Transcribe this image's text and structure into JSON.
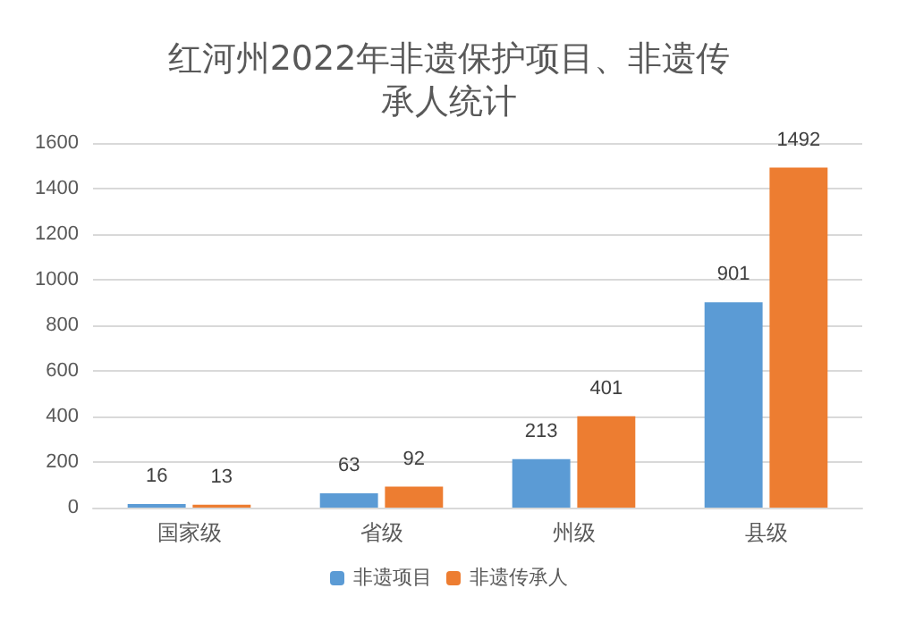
{
  "chart_data": {
    "type": "bar",
    "title": "红河州2022年非遗保护项目、非遗传承人统计",
    "categories": [
      "国家级",
      "省级",
      "州级",
      "县级"
    ],
    "series": [
      {
        "name": "非遗项目",
        "color": "#5b9bd5",
        "values": [
          16,
          63,
          213,
          901
        ]
      },
      {
        "name": "非遗传承人",
        "color": "#ed7d31",
        "values": [
          13,
          92,
          401,
          1492
        ]
      }
    ],
    "ylim": [
      0,
      1600
    ],
    "yticks": [
      0,
      200,
      400,
      600,
      800,
      1000,
      1200,
      1400,
      1600
    ],
    "grid": "y",
    "legend": "bottom",
    "data_labels": true
  }
}
